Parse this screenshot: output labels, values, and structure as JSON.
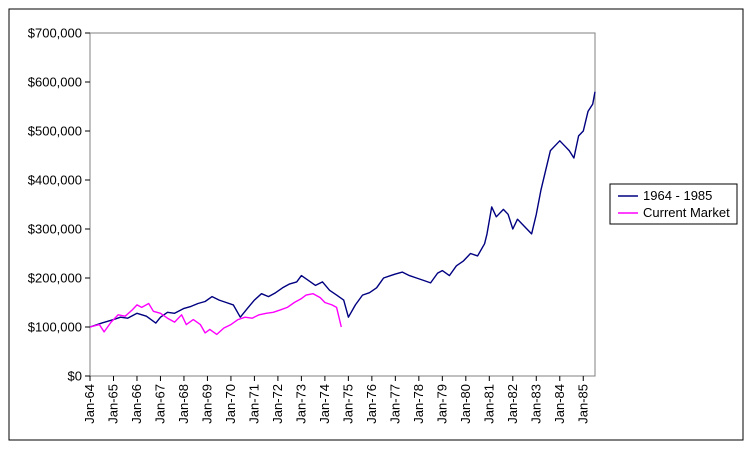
{
  "chart_data": {
    "type": "line",
    "title": "",
    "xlabel": "",
    "ylabel": "",
    "ylim": [
      0,
      700000
    ],
    "y_ticks": [
      0,
      100000,
      200000,
      300000,
      400000,
      500000,
      600000,
      700000
    ],
    "y_tick_labels": [
      "$0",
      "$100,000",
      "$200,000",
      "$300,000",
      "$400,000",
      "$500,000",
      "$600,000",
      "$700,000"
    ],
    "x_tick_labels": [
      "Jan-64",
      "Jan-65",
      "Jan-66",
      "Jan-67",
      "Jan-68",
      "Jan-69",
      "Jan-70",
      "Jan-71",
      "Jan-72",
      "Jan-73",
      "Jan-74",
      "Jan-75",
      "Jan-76",
      "Jan-77",
      "Jan-78",
      "Jan-79",
      "Jan-80",
      "Jan-81",
      "Jan-82",
      "Jan-83",
      "Jan-84",
      "Jan-85"
    ],
    "x_range_years": [
      1964.0,
      1985.5
    ],
    "grid": false,
    "legend_position": "right",
    "series": [
      {
        "name": "1964 - 1985",
        "color": "#000080",
        "x": [
          1964.0,
          1964.5,
          1965.0,
          1965.3,
          1965.6,
          1966.0,
          1966.4,
          1966.8,
          1967.0,
          1967.3,
          1967.6,
          1968.0,
          1968.3,
          1968.6,
          1968.9,
          1969.2,
          1969.5,
          1969.8,
          1970.1,
          1970.4,
          1970.7,
          1971.0,
          1971.3,
          1971.6,
          1971.9,
          1972.2,
          1972.5,
          1972.8,
          1973.0,
          1973.3,
          1973.6,
          1973.9,
          1974.2,
          1974.5,
          1974.8,
          1975.0,
          1975.3,
          1975.6,
          1975.9,
          1976.2,
          1976.5,
          1976.8,
          1977.0,
          1977.3,
          1977.6,
          1977.9,
          1978.2,
          1978.5,
          1978.8,
          1979.0,
          1979.3,
          1979.6,
          1979.9,
          1980.2,
          1980.5,
          1980.8,
          1980.9,
          1981.1,
          1981.3,
          1981.6,
          1981.8,
          1982.0,
          1982.2,
          1982.4,
          1982.6,
          1982.8,
          1983.0,
          1983.2,
          1983.4,
          1983.6,
          1983.8,
          1984.0,
          1984.2,
          1984.4,
          1984.6,
          1984.8,
          1985.0,
          1985.2,
          1985.4,
          1985.5
        ],
        "values": [
          100000,
          108000,
          115000,
          120000,
          118000,
          128000,
          122000,
          108000,
          120000,
          130000,
          128000,
          138000,
          142000,
          148000,
          152000,
          162000,
          155000,
          150000,
          145000,
          120000,
          138000,
          155000,
          168000,
          162000,
          170000,
          180000,
          188000,
          192000,
          205000,
          195000,
          185000,
          192000,
          175000,
          165000,
          155000,
          120000,
          145000,
          165000,
          170000,
          180000,
          200000,
          205000,
          208000,
          212000,
          205000,
          200000,
          195000,
          190000,
          210000,
          215000,
          205000,
          225000,
          235000,
          250000,
          245000,
          270000,
          290000,
          345000,
          325000,
          340000,
          330000,
          300000,
          320000,
          310000,
          300000,
          290000,
          330000,
          380000,
          420000,
          460000,
          470000,
          480000,
          470000,
          460000,
          445000,
          490000,
          500000,
          540000,
          555000,
          580000
        ]
      },
      {
        "name": "Current Market",
        "color": "#ff00ff",
        "x": [
          1964.0,
          1964.4,
          1964.6,
          1964.9,
          1965.2,
          1965.5,
          1965.8,
          1966.0,
          1966.2,
          1966.5,
          1966.7,
          1967.0,
          1967.3,
          1967.6,
          1967.9,
          1968.1,
          1968.4,
          1968.7,
          1968.9,
          1969.1,
          1969.4,
          1969.7,
          1970.0,
          1970.3,
          1970.6,
          1970.9,
          1971.2,
          1971.5,
          1971.8,
          1972.1,
          1972.4,
          1972.7,
          1973.0,
          1973.2,
          1973.5,
          1973.8,
          1974.0,
          1974.3,
          1974.5,
          1974.7
        ],
        "values": [
          100000,
          105000,
          90000,
          110000,
          125000,
          122000,
          135000,
          145000,
          140000,
          148000,
          132000,
          128000,
          118000,
          110000,
          125000,
          105000,
          115000,
          105000,
          88000,
          95000,
          85000,
          98000,
          105000,
          115000,
          120000,
          118000,
          125000,
          128000,
          130000,
          135000,
          140000,
          150000,
          158000,
          165000,
          168000,
          160000,
          150000,
          145000,
          140000,
          100000
        ]
      }
    ]
  }
}
